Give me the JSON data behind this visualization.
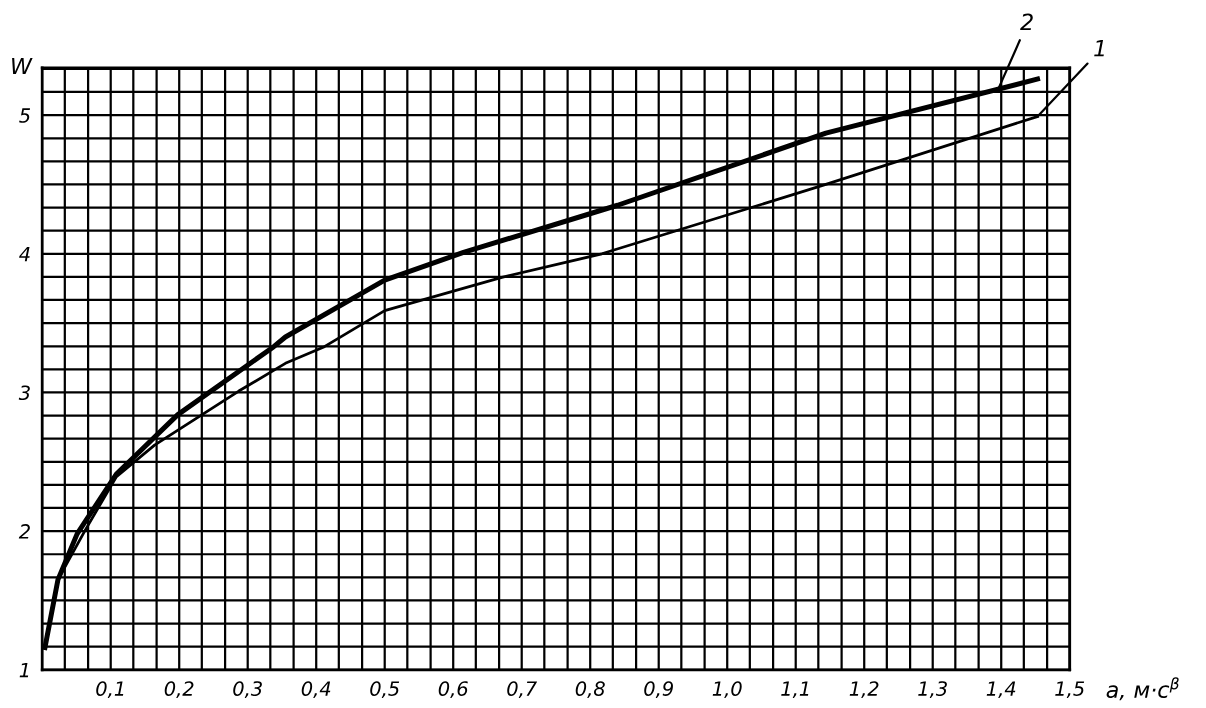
{
  "chart_data": {
    "type": "line",
    "xlabel": "a, м·с$^{β}$",
    "ylabel": "W",
    "xlim": [
      0,
      1.5
    ],
    "ylim": [
      1,
      5.34
    ],
    "xticks": [
      {
        "value": 0.033,
        "label": null
      },
      {
        "value": 0.067,
        "label": null
      },
      {
        "value": 0.1,
        "label": "0,1"
      },
      {
        "value": 0.133,
        "label": null
      },
      {
        "value": 0.167,
        "label": null
      },
      {
        "value": 0.2,
        "label": "0,2"
      },
      {
        "value": 0.233,
        "label": null
      },
      {
        "value": 0.267,
        "label": null
      },
      {
        "value": 0.3,
        "label": "0,3"
      },
      {
        "value": 0.333,
        "label": null
      },
      {
        "value": 0.367,
        "label": null
      },
      {
        "value": 0.4,
        "label": "0,4"
      },
      {
        "value": 0.433,
        "label": null
      },
      {
        "value": 0.467,
        "label": null
      },
      {
        "value": 0.5,
        "label": "0,5"
      },
      {
        "value": 0.533,
        "label": null
      },
      {
        "value": 0.567,
        "label": null
      },
      {
        "value": 0.6,
        "label": "0,6"
      },
      {
        "value": 0.633,
        "label": null
      },
      {
        "value": 0.667,
        "label": null
      },
      {
        "value": 0.7,
        "label": "0,7"
      },
      {
        "value": 0.733,
        "label": null
      },
      {
        "value": 0.767,
        "label": null
      },
      {
        "value": 0.8,
        "label": "0,8"
      },
      {
        "value": 0.833,
        "label": null
      },
      {
        "value": 0.867,
        "label": null
      },
      {
        "value": 0.9,
        "label": "0,9"
      },
      {
        "value": 0.933,
        "label": null
      },
      {
        "value": 0.967,
        "label": null
      },
      {
        "value": 1.0,
        "label": "1,0"
      },
      {
        "value": 1.033,
        "label": null
      },
      {
        "value": 1.067,
        "label": null
      },
      {
        "value": 1.1,
        "label": "1,1"
      },
      {
        "value": 1.133,
        "label": null
      },
      {
        "value": 1.167,
        "label": null
      },
      {
        "value": 1.2,
        "label": "1,2"
      },
      {
        "value": 1.233,
        "label": null
      },
      {
        "value": 1.267,
        "label": null
      },
      {
        "value": 1.3,
        "label": "1,3"
      },
      {
        "value": 1.333,
        "label": null
      },
      {
        "value": 1.367,
        "label": null
      },
      {
        "value": 1.4,
        "label": "1,4"
      },
      {
        "value": 1.433,
        "label": null
      },
      {
        "value": 1.467,
        "label": null
      },
      {
        "value": 1.5,
        "label": "1,5"
      }
    ],
    "yticks": [
      1,
      {
        "value": 1.167,
        "label": null
      },
      {
        "value": 1.333,
        "label": null
      },
      {
        "value": 1.5,
        "label": null
      },
      {
        "value": 1.667,
        "label": null
      },
      {
        "value": 1.833,
        "label": null
      },
      2,
      {
        "value": 2.167,
        "label": null
      },
      {
        "value": 2.333,
        "label": null
      },
      {
        "value": 2.5,
        "label": null
      },
      {
        "value": 2.667,
        "label": null
      },
      {
        "value": 2.833,
        "label": null
      },
      3,
      {
        "value": 3.167,
        "label": null
      },
      {
        "value": 3.333,
        "label": null
      },
      {
        "value": 3.5,
        "label": null
      },
      {
        "value": 3.667,
        "label": null
      },
      {
        "value": 3.833,
        "label": null
      },
      4,
      {
        "value": 4.167,
        "label": null
      },
      {
        "value": 4.333,
        "label": null
      },
      {
        "value": 4.5,
        "label": null
      },
      {
        "value": 4.667,
        "label": null
      },
      {
        "value": 4.833,
        "label": null
      },
      5,
      {
        "value": 5.167,
        "label": null
      },
      {
        "value": 5.333,
        "label": null
      }
    ],
    "grid": true,
    "line_style": "solid",
    "series": [
      {
        "color": "#000000",
        "x": [
          0.004,
          0.023,
          0.062,
          0.108,
          0.164,
          0.287,
          0.355,
          0.412,
          0.5,
          0.671,
          0.817,
          1.144,
          1.453
        ],
        "values": [
          1.16,
          1.65,
          2.0,
          2.39,
          2.62,
          3.01,
          3.21,
          3.33,
          3.59,
          3.83,
          4.0,
          4.5,
          4.99
        ]
      },
      {
        "color": "#000000",
        "x": [
          0.004,
          0.023,
          0.051,
          0.108,
          0.198,
          0.338,
          0.355,
          0.5,
          0.615,
          0.84,
          1.144,
          1.453
        ],
        "values": [
          1.16,
          1.65,
          1.98,
          2.41,
          2.84,
          3.33,
          3.4,
          3.81,
          4.01,
          4.35,
          4.87,
          5.26
        ]
      }
    ],
    "annotations": [
      {
        "text": "1",
        "x": 1.453,
        "y": 4.99
      },
      {
        "text": "2",
        "x": 1.395,
        "y": 5.18
      }
    ]
  }
}
